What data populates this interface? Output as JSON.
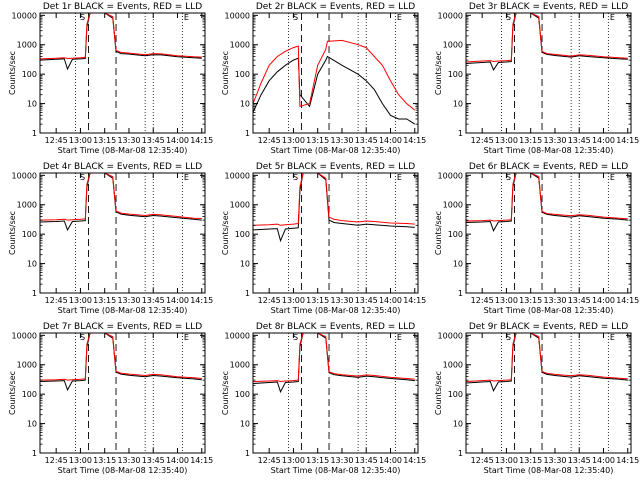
{
  "figure": {
    "xlabel": "Start Time (08-Mar-08 12:35:40)",
    "ylabel": "Counts/sec",
    "x_tick_labels": [
      "12:45",
      "13:00",
      "13:15",
      "13:30",
      "13:45",
      "14:00",
      "14:15"
    ],
    "y_tick_labels": [
      "1",
      "10",
      "100",
      "1000",
      "10000"
    ],
    "colors": {
      "events": "#000000",
      "lld": "#ff0000",
      "background": "#ffffff"
    }
  },
  "chart_data": [
    {
      "type": "line",
      "title": "Det 1r BLACK = Events, RED = LLD",
      "flag_labels": [
        "S",
        "E"
      ],
      "xlim": [
        "12:35",
        "14:17"
      ],
      "ylim": [
        1,
        12000
      ],
      "yscale": "log",
      "x": [
        "12:35",
        "12:45",
        "12:50",
        "12:52",
        "12:55",
        "13:00",
        "13:03",
        "13:04",
        "13:06",
        "13:10",
        "13:15",
        "13:20",
        "13:22",
        "13:25",
        "13:30",
        "13:40",
        "13:45",
        "13:50",
        "14:00",
        "14:10",
        "14:15"
      ],
      "series": [
        {
          "name": "Events",
          "color": "#000000",
          "values": [
            300,
            320,
            330,
            150,
            320,
            330,
            340,
            4000,
            12000,
            12000,
            12000,
            8000,
            600,
            500,
            480,
            420,
            460,
            450,
            390,
            360,
            350
          ]
        },
        {
          "name": "LLD",
          "color": "#ff0000",
          "values": [
            330,
            350,
            360,
            340,
            350,
            360,
            370,
            5000,
            12000,
            12000,
            12000,
            9000,
            650,
            550,
            520,
            460,
            500,
            490,
            420,
            390,
            380
          ]
        }
      ],
      "dashed_lines": [
        "13:05",
        "13:22"
      ],
      "dotted_lines": [
        "12:57",
        "13:40",
        "13:45",
        "14:03"
      ]
    },
    {
      "type": "line",
      "title": "Det 2r BLACK = Events, RED = LLD",
      "flag_labels": [
        "S",
        "E"
      ],
      "xlim": [
        "12:35",
        "14:17"
      ],
      "ylim": [
        1,
        12000
      ],
      "yscale": "log",
      "x": [
        "12:35",
        "12:40",
        "12:45",
        "12:50",
        "12:55",
        "13:00",
        "13:03",
        "13:04",
        "13:10",
        "13:15",
        "13:20",
        "13:21",
        "13:30",
        "13:40",
        "13:45",
        "13:50",
        "13:55",
        "14:00",
        "14:05",
        "14:10",
        "14:15"
      ],
      "series": [
        {
          "name": "Events",
          "color": "#000000",
          "values": [
            5,
            20,
            60,
            120,
            200,
            300,
            350,
            20,
            8,
            100,
            300,
            400,
            200,
            100,
            60,
            30,
            10,
            4,
            3,
            3,
            2
          ]
        },
        {
          "name": "LLD",
          "color": "#ff0000",
          "values": [
            10,
            50,
            200,
            400,
            600,
            800,
            900,
            8,
            10,
            200,
            700,
            1300,
            1400,
            1000,
            800,
            400,
            200,
            60,
            20,
            10,
            6
          ]
        }
      ],
      "dashed_lines": [
        "13:05",
        "13:22"
      ],
      "dotted_lines": [
        "12:57",
        "13:40",
        "13:45",
        "14:03"
      ]
    },
    {
      "type": "line",
      "title": "Det 3r BLACK = Events, RED = LLD",
      "flag_labels": [
        "S",
        "E"
      ],
      "xlim": [
        "12:35",
        "14:17"
      ],
      "ylim": [
        1,
        12000
      ],
      "yscale": "log",
      "x": [
        "12:35",
        "12:45",
        "12:50",
        "12:52",
        "12:55",
        "13:00",
        "13:03",
        "13:04",
        "13:06",
        "13:10",
        "13:15",
        "13:20",
        "13:22",
        "13:25",
        "13:30",
        "13:40",
        "13:45",
        "13:50",
        "14:00",
        "14:10",
        "14:15"
      ],
      "series": [
        {
          "name": "Events",
          "color": "#000000",
          "values": [
            230,
            250,
            260,
            140,
            250,
            260,
            270,
            4000,
            12000,
            12000,
            12000,
            8000,
            550,
            470,
            430,
            380,
            420,
            400,
            360,
            330,
            320
          ]
        },
        {
          "name": "LLD",
          "color": "#ff0000",
          "values": [
            260,
            280,
            290,
            270,
            280,
            290,
            300,
            5000,
            12000,
            12000,
            12000,
            9000,
            600,
            500,
            470,
            410,
            450,
            440,
            390,
            360,
            350
          ]
        }
      ],
      "dashed_lines": [
        "13:05",
        "13:22"
      ],
      "dotted_lines": [
        "12:57",
        "13:40",
        "13:45",
        "14:03"
      ]
    },
    {
      "type": "line",
      "title": "Det 4r BLACK = Events, RED = LLD",
      "flag_labels": [
        "S",
        "E"
      ],
      "xlim": [
        "12:35",
        "14:17"
      ],
      "ylim": [
        1,
        12000
      ],
      "yscale": "log",
      "x": [
        "12:35",
        "12:45",
        "12:50",
        "12:52",
        "12:55",
        "13:00",
        "13:03",
        "13:04",
        "13:06",
        "13:10",
        "13:15",
        "13:20",
        "13:22",
        "13:25",
        "13:30",
        "13:40",
        "13:45",
        "13:50",
        "14:00",
        "14:10",
        "14:15"
      ],
      "series": [
        {
          "name": "Events",
          "color": "#000000",
          "values": [
            260,
            270,
            280,
            140,
            270,
            280,
            290,
            4000,
            12000,
            12000,
            12000,
            8000,
            580,
            480,
            440,
            390,
            430,
            410,
            360,
            320,
            300
          ]
        },
        {
          "name": "LLD",
          "color": "#ff0000",
          "values": [
            300,
            310,
            320,
            300,
            310,
            320,
            330,
            5000,
            12000,
            12000,
            12000,
            9000,
            620,
            520,
            480,
            430,
            470,
            450,
            400,
            350,
            340
          ]
        }
      ],
      "dashed_lines": [
        "13:05",
        "13:22"
      ],
      "dotted_lines": [
        "12:57",
        "13:40",
        "13:45",
        "14:03"
      ]
    },
    {
      "type": "line",
      "title": "Det 5r BLACK = Events, RED = LLD",
      "flag_labels": [
        "S",
        "E"
      ],
      "xlim": [
        "12:35",
        "14:17"
      ],
      "ylim": [
        1,
        12000
      ],
      "yscale": "log",
      "x": [
        "12:35",
        "12:45",
        "12:50",
        "12:52",
        "12:55",
        "13:00",
        "13:03",
        "13:04",
        "13:06",
        "13:10",
        "13:15",
        "13:20",
        "13:22",
        "13:25",
        "13:30",
        "13:40",
        "13:45",
        "13:50",
        "14:00",
        "14:10",
        "14:15"
      ],
      "series": [
        {
          "name": "Events",
          "color": "#000000",
          "values": [
            140,
            150,
            155,
            60,
            150,
            160,
            165,
            3000,
            12000,
            12000,
            12000,
            7000,
            300,
            250,
            230,
            200,
            220,
            210,
            190,
            180,
            170
          ]
        },
        {
          "name": "LLD",
          "color": "#ff0000",
          "values": [
            200,
            210,
            220,
            200,
            210,
            220,
            230,
            4000,
            12000,
            12000,
            12000,
            8000,
            380,
            320,
            290,
            260,
            280,
            270,
            240,
            230,
            220
          ]
        }
      ],
      "dashed_lines": [
        "13:05",
        "13:22"
      ],
      "dotted_lines": [
        "12:57",
        "13:40",
        "13:45",
        "14:03"
      ]
    },
    {
      "type": "line",
      "title": "Det 6r BLACK = Events, RED = LLD",
      "flag_labels": [
        "S",
        "E"
      ],
      "xlim": [
        "12:35",
        "14:17"
      ],
      "ylim": [
        1,
        12000
      ],
      "yscale": "log",
      "x": [
        "12:35",
        "12:45",
        "12:50",
        "12:52",
        "12:55",
        "13:00",
        "13:03",
        "13:04",
        "13:06",
        "13:10",
        "13:15",
        "13:20",
        "13:22",
        "13:25",
        "13:30",
        "13:40",
        "13:45",
        "13:50",
        "14:00",
        "14:10",
        "14:15"
      ],
      "series": [
        {
          "name": "Events",
          "color": "#000000",
          "values": [
            250,
            260,
            270,
            130,
            260,
            270,
            280,
            4000,
            12000,
            12000,
            12000,
            8000,
            560,
            470,
            430,
            380,
            420,
            400,
            350,
            320,
            300
          ]
        },
        {
          "name": "LLD",
          "color": "#ff0000",
          "values": [
            280,
            290,
            300,
            280,
            290,
            300,
            310,
            5000,
            12000,
            12000,
            12000,
            9000,
            600,
            500,
            470,
            420,
            460,
            440,
            380,
            350,
            330
          ]
        }
      ],
      "dashed_lines": [
        "13:05",
        "13:22"
      ],
      "dotted_lines": [
        "12:57",
        "13:40",
        "13:45",
        "14:03"
      ]
    },
    {
      "type": "line",
      "title": "Det 7r BLACK = Events, RED = LLD",
      "flag_labels": [
        "S",
        "E"
      ],
      "xlim": [
        "12:35",
        "14:17"
      ],
      "ylim": [
        1,
        12000
      ],
      "yscale": "log",
      "x": [
        "12:35",
        "12:45",
        "12:50",
        "12:52",
        "12:55",
        "13:00",
        "13:03",
        "13:04",
        "13:06",
        "13:10",
        "13:15",
        "13:20",
        "13:22",
        "13:25",
        "13:30",
        "13:40",
        "13:45",
        "13:50",
        "14:00",
        "14:10",
        "14:15"
      ],
      "series": [
        {
          "name": "Events",
          "color": "#000000",
          "values": [
            270,
            280,
            290,
            140,
            280,
            290,
            300,
            4000,
            12000,
            12000,
            12000,
            8000,
            560,
            480,
            440,
            390,
            430,
            410,
            360,
            330,
            310
          ]
        },
        {
          "name": "LLD",
          "color": "#ff0000",
          "values": [
            300,
            310,
            320,
            300,
            310,
            320,
            330,
            5000,
            12000,
            12000,
            12000,
            9000,
            600,
            520,
            480,
            430,
            470,
            450,
            390,
            360,
            340
          ]
        }
      ],
      "dashed_lines": [
        "13:05",
        "13:22"
      ],
      "dotted_lines": [
        "12:57",
        "13:40",
        "13:45",
        "14:03"
      ]
    },
    {
      "type": "line",
      "title": "Det 8r BLACK = Events, RED = LLD",
      "flag_labels": [
        "S",
        "E"
      ],
      "xlim": [
        "12:35",
        "14:17"
      ],
      "ylim": [
        1,
        12000
      ],
      "yscale": "log",
      "x": [
        "12:35",
        "12:45",
        "12:50",
        "12:52",
        "12:55",
        "13:00",
        "13:03",
        "13:04",
        "13:06",
        "13:10",
        "13:15",
        "13:20",
        "13:22",
        "13:25",
        "13:30",
        "13:40",
        "13:45",
        "13:50",
        "14:00",
        "14:10",
        "14:15"
      ],
      "series": [
        {
          "name": "Events",
          "color": "#000000",
          "values": [
            230,
            250,
            260,
            120,
            250,
            260,
            270,
            4000,
            12000,
            12000,
            12000,
            8000,
            540,
            460,
            420,
            370,
            410,
            390,
            340,
            310,
            290
          ]
        },
        {
          "name": "LLD",
          "color": "#ff0000",
          "values": [
            270,
            280,
            290,
            270,
            280,
            290,
            300,
            5000,
            12000,
            12000,
            12000,
            9000,
            580,
            500,
            460,
            410,
            450,
            430,
            370,
            340,
            320
          ]
        }
      ],
      "dashed_lines": [
        "13:05",
        "13:22"
      ],
      "dotted_lines": [
        "12:57",
        "13:40",
        "13:45",
        "14:03"
      ]
    },
    {
      "type": "line",
      "title": "Det 9r BLACK = Events, RED = LLD",
      "flag_labels": [
        "S",
        "E"
      ],
      "xlim": [
        "12:35",
        "14:17"
      ],
      "ylim": [
        1,
        12000
      ],
      "yscale": "log",
      "x": [
        "12:35",
        "12:45",
        "12:50",
        "12:52",
        "12:55",
        "13:00",
        "13:03",
        "13:04",
        "13:06",
        "13:10",
        "13:15",
        "13:20",
        "13:22",
        "13:25",
        "13:30",
        "13:40",
        "13:45",
        "13:50",
        "14:00",
        "14:10",
        "14:15"
      ],
      "series": [
        {
          "name": "Events",
          "color": "#000000",
          "values": [
            240,
            260,
            270,
            130,
            260,
            270,
            280,
            4000,
            12000,
            12000,
            12000,
            8000,
            550,
            470,
            430,
            380,
            420,
            400,
            350,
            320,
            300
          ]
        },
        {
          "name": "LLD",
          "color": "#ff0000",
          "values": [
            270,
            290,
            300,
            280,
            290,
            300,
            310,
            5000,
            12000,
            12000,
            12000,
            9000,
            590,
            510,
            470,
            420,
            460,
            440,
            380,
            350,
            330
          ]
        }
      ],
      "dashed_lines": [
        "13:05",
        "13:22"
      ],
      "dotted_lines": [
        "12:57",
        "13:40",
        "13:45",
        "14:03"
      ]
    }
  ]
}
